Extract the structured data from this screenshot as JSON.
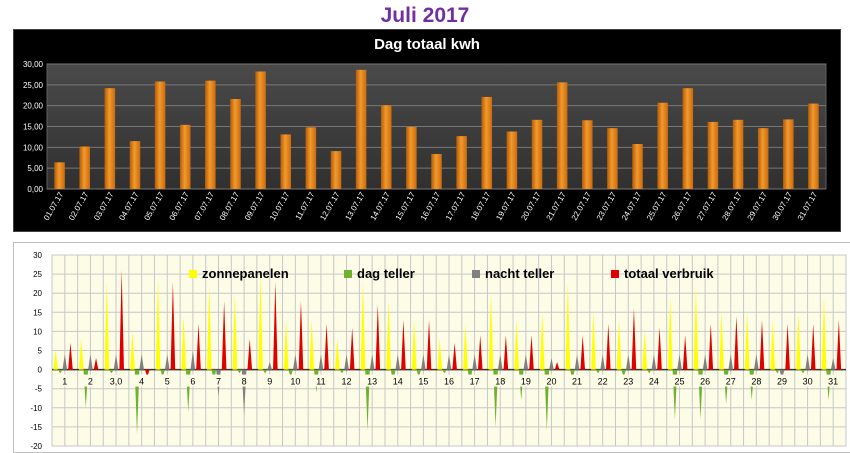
{
  "page": {
    "title": "Juli 2017"
  },
  "colors": {
    "title": "#7030a0",
    "bar_orange": "#f39a2a",
    "zon": "#ffff00",
    "dag": "#70b030",
    "nacht": "#808080",
    "verbruik": "#e00000"
  },
  "chart_data": [
    {
      "type": "bar",
      "title": "Dag totaal kwh",
      "categories": [
        "01.07.17",
        "02.07.17",
        "03.07.17",
        "04.07.17",
        "05.07.17",
        "06.07.17",
        "07.07.17",
        "08.07.17",
        "09.07.17",
        "10.07.17",
        "11.07.17",
        "12.07.17",
        "13.07.17",
        "14.07.17",
        "15.07.17",
        "16.07.17",
        "17.07.17",
        "18.07.17",
        "19.07.17",
        "20.07.17",
        "21.07.17",
        "22.07.17",
        "23.07.17",
        "24.07.17",
        "25.07.17",
        "26.07.17",
        "27.07.17",
        "28.07.17",
        "29.07.17",
        "30.07.17",
        "31.07.17"
      ],
      "values": [
        6.4,
        10.2,
        24.2,
        11.5,
        25.8,
        15.4,
        26.0,
        21.6,
        28.2,
        13.1,
        14.8,
        9.1,
        28.6,
        20.1,
        14.9,
        8.4,
        12.7,
        22.1,
        13.8,
        16.6,
        25.6,
        16.5,
        14.6,
        10.8,
        20.7,
        24.2,
        16.1,
        16.6,
        14.6,
        16.7,
        20.5
      ],
      "ylim": [
        0,
        30
      ],
      "yticks": [
        "0,00",
        "5,00",
        "10,00",
        "15,00",
        "20,00",
        "25,00",
        "30,00"
      ],
      "grid": true
    },
    {
      "type": "bar",
      "categories": [
        "1",
        "2",
        "3,0",
        "4",
        "5",
        "6",
        "7",
        "8",
        "9",
        "10",
        "11",
        "12",
        "13",
        "14",
        "15",
        "16",
        "17",
        "18",
        "19",
        "20",
        "21",
        "22",
        "23",
        "24",
        "25",
        "26",
        "27",
        "28",
        "29",
        "30",
        "31"
      ],
      "ylim": [
        -20,
        30
      ],
      "yticks": [
        "-20",
        "-15",
        "-10",
        "-5",
        "0",
        "5",
        "10",
        "15",
        "20",
        "25",
        "30"
      ],
      "grid": true,
      "legend_position": "top",
      "series": [
        {
          "name": "zonnepanelen",
          "values": [
            5,
            8,
            23,
            10,
            24,
            14,
            22,
            20,
            25,
            13,
            13,
            8,
            23,
            18,
            13,
            8,
            12,
            20,
            13,
            15,
            23,
            15,
            13,
            10,
            19,
            22,
            15,
            15,
            13,
            15,
            19
          ]
        },
        {
          "name": "dag teller",
          "values": [
            -1,
            -10,
            -1,
            -17,
            -2,
            -11,
            -3,
            -1,
            -1,
            -2,
            -6,
            -1,
            -16,
            -4,
            -2,
            -1,
            -4,
            -15,
            -8,
            -16,
            -3,
            -1,
            -2,
            -1,
            -13,
            -13,
            -9,
            -8,
            -1,
            -1,
            -8
          ]
        },
        {
          "name": "nacht teller",
          "values": [
            4,
            4,
            4,
            4,
            4,
            5,
            -7,
            -12,
            2,
            4,
            4,
            4,
            4,
            4,
            4,
            4,
            4,
            4,
            4,
            3,
            4,
            4,
            4,
            4,
            4,
            4,
            4,
            4,
            -3,
            4,
            3
          ]
        },
        {
          "name": "totaal verbruik",
          "values": [
            7,
            3,
            26,
            -2,
            23,
            12,
            18,
            8,
            23,
            18,
            12,
            11,
            17,
            13,
            13,
            7,
            9,
            9,
            9,
            2,
            9,
            12,
            16,
            11,
            9,
            12,
            14,
            13,
            12,
            12,
            13
          ]
        }
      ]
    }
  ]
}
